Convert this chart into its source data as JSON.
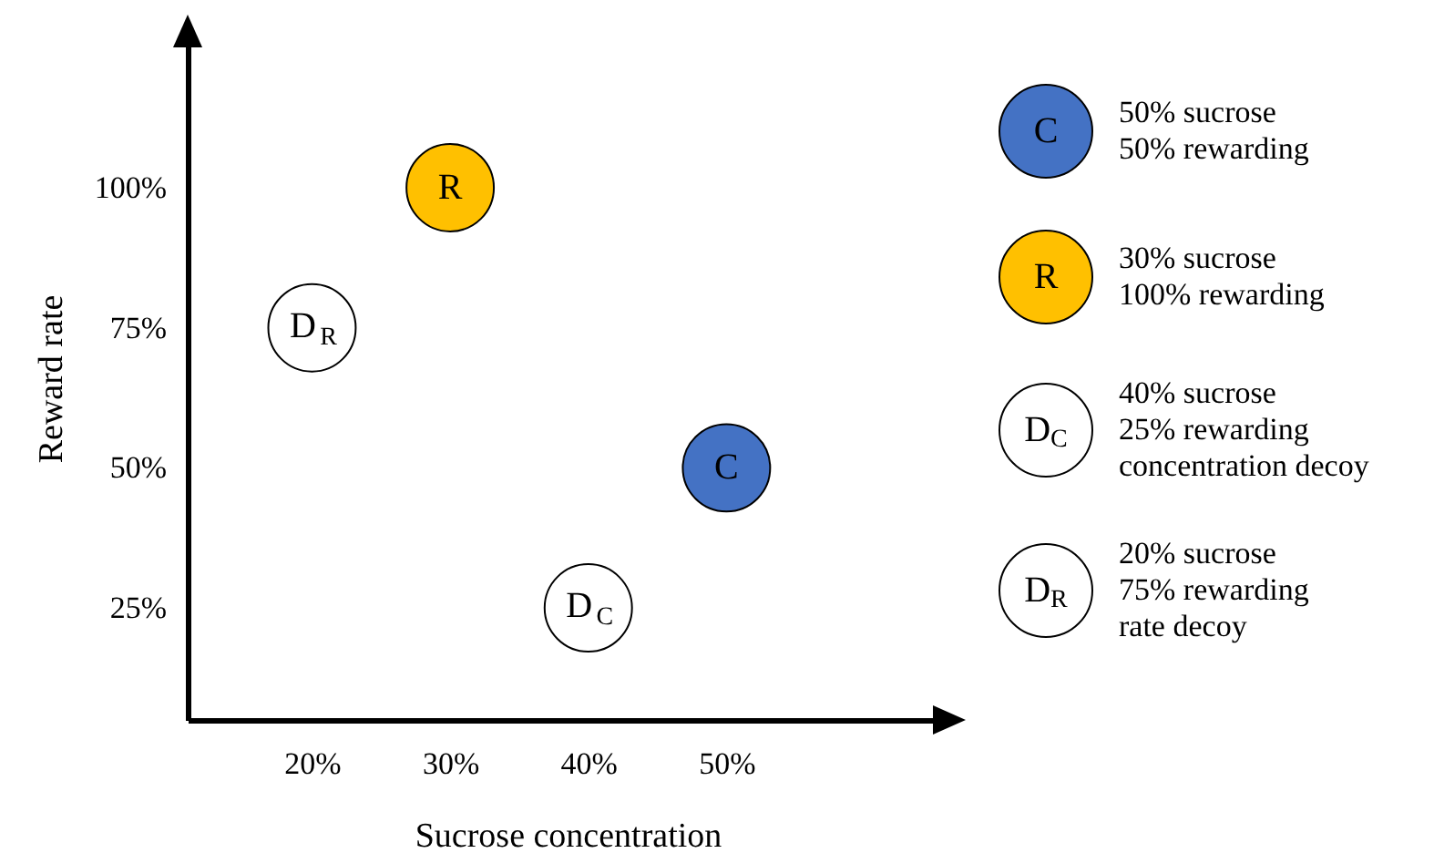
{
  "chart_data": {
    "type": "scatter",
    "xlabel": "Sucrose concentration",
    "ylabel": "Reward rate",
    "xlim": [
      11,
      66
    ],
    "ylim": [
      5,
      127
    ],
    "xticks": [
      {
        "value": 20,
        "label": "20%"
      },
      {
        "value": 30,
        "label": "30%"
      },
      {
        "value": 40,
        "label": "40%"
      },
      {
        "value": 50,
        "label": "50%"
      }
    ],
    "yticks": [
      {
        "value": 25,
        "label": "25%"
      },
      {
        "value": 50,
        "label": "50%"
      },
      {
        "value": 75,
        "label": "75%"
      },
      {
        "value": 100,
        "label": "100%"
      }
    ],
    "series": [
      {
        "name": "C",
        "color": "#4472c4",
        "x": [
          50
        ],
        "values": [
          50
        ]
      },
      {
        "name": "R",
        "color": "#ffc000",
        "x": [
          30
        ],
        "values": [
          100
        ]
      },
      {
        "name": "D$_{C}$",
        "color": "#ffffff",
        "x": [
          40
        ],
        "values": [
          25
        ]
      },
      {
        "name": "D$_{R}$",
        "color": "#ffffff",
        "x": [
          20
        ],
        "values": [
          75
        ]
      }
    ],
    "annotations": [
      "50% sucrose\n50% rewarding",
      "30% sucrose\n100% rewarding",
      "40% sucrose\n25% rewarding\nconcentration decoy",
      "20% sucrose\n75% rewarding\nrate decoy"
    ],
    "legend": "right",
    "marker": "circle",
    "grid": false
  }
}
